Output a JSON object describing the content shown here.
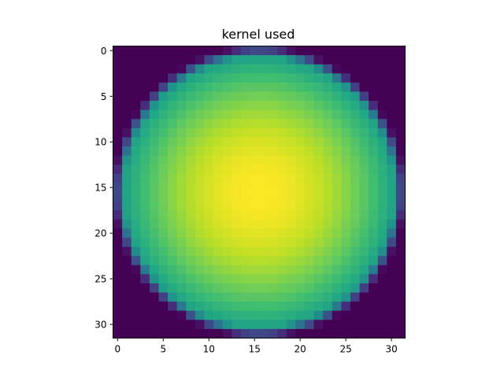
{
  "chart_data": {
    "type": "heatmap",
    "title": "kernel used",
    "xlabel": "",
    "ylabel": "",
    "grid": false,
    "shape": [
      32,
      32
    ],
    "xlim": [
      -0.5,
      31.5
    ],
    "ylim": [
      31.5,
      -0.5
    ],
    "y_axis_inverted": true,
    "xticks": [
      0,
      5,
      10,
      15,
      20,
      25,
      30
    ],
    "yticks": [
      0,
      5,
      10,
      15,
      20,
      25,
      30
    ],
    "colormap": "viridis",
    "kernel": {
      "kind": "circular, radially decreasing from center",
      "center": [
        15.5,
        15.5
      ],
      "radius": 16,
      "inside_value_range": [
        0.5,
        1.0
      ],
      "outside_value": 0.0
    }
  }
}
